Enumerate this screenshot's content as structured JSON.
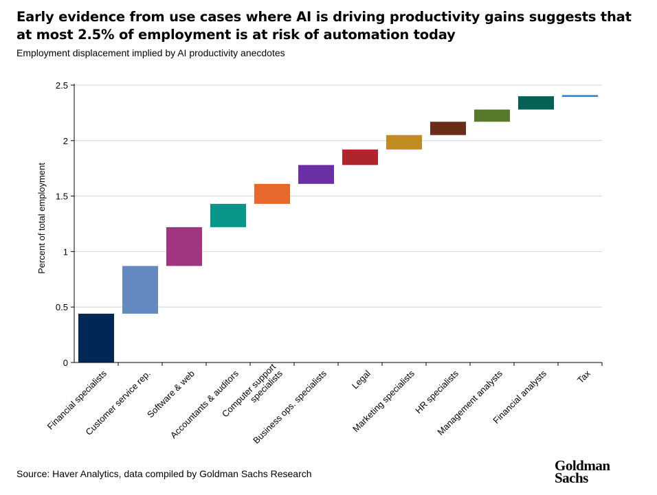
{
  "title": "Early evidence from use cases where AI is driving productivity gains suggests that at most 2.5% of employment is at risk of automation today",
  "subtitle": "Employment displacement implied by AI productivity anecdotes",
  "source": "Source: Haver Analytics, data compiled by Goldman Sachs Research",
  "logo": {
    "line1": "Goldman",
    "line2": "Sachs"
  },
  "chart_data": {
    "type": "bar",
    "subtype": "waterfall",
    "title": "Employment displacement implied by AI productivity anecdotes",
    "xlabel": "",
    "ylabel": "Percent of total employment",
    "ylim": [
      0,
      2.5
    ],
    "yticks": [
      0,
      0.5,
      1,
      1.5,
      2,
      2.5
    ],
    "ytick_labels": [
      "0",
      "0.5",
      "1",
      "1.5",
      "2",
      "2.5"
    ],
    "grid": true,
    "categories": [
      "Financial specialists",
      "Customer service rep.",
      "Software & web",
      "Accountants & auditors",
      "Computer support specialists",
      "Business ops. specialists",
      "Legal",
      "Marketing specialists",
      "HR specialists",
      "Management analysts",
      "Financial analysts",
      "Tax"
    ],
    "start": [
      0,
      0.44,
      0.87,
      1.22,
      1.43,
      1.61,
      1.78,
      1.92,
      2.05,
      2.17,
      2.28,
      2.4
    ],
    "end": [
      0.44,
      0.87,
      1.22,
      1.43,
      1.61,
      1.78,
      1.92,
      2.05,
      2.17,
      2.28,
      2.4,
      2.41
    ],
    "colors": [
      "#002856",
      "#6389bf",
      "#a0367f",
      "#08958a",
      "#e8672b",
      "#6a2fa5",
      "#b0252c",
      "#c08c20",
      "#6a2e18",
      "#587a2c",
      "#066155",
      "#3778c0"
    ]
  }
}
